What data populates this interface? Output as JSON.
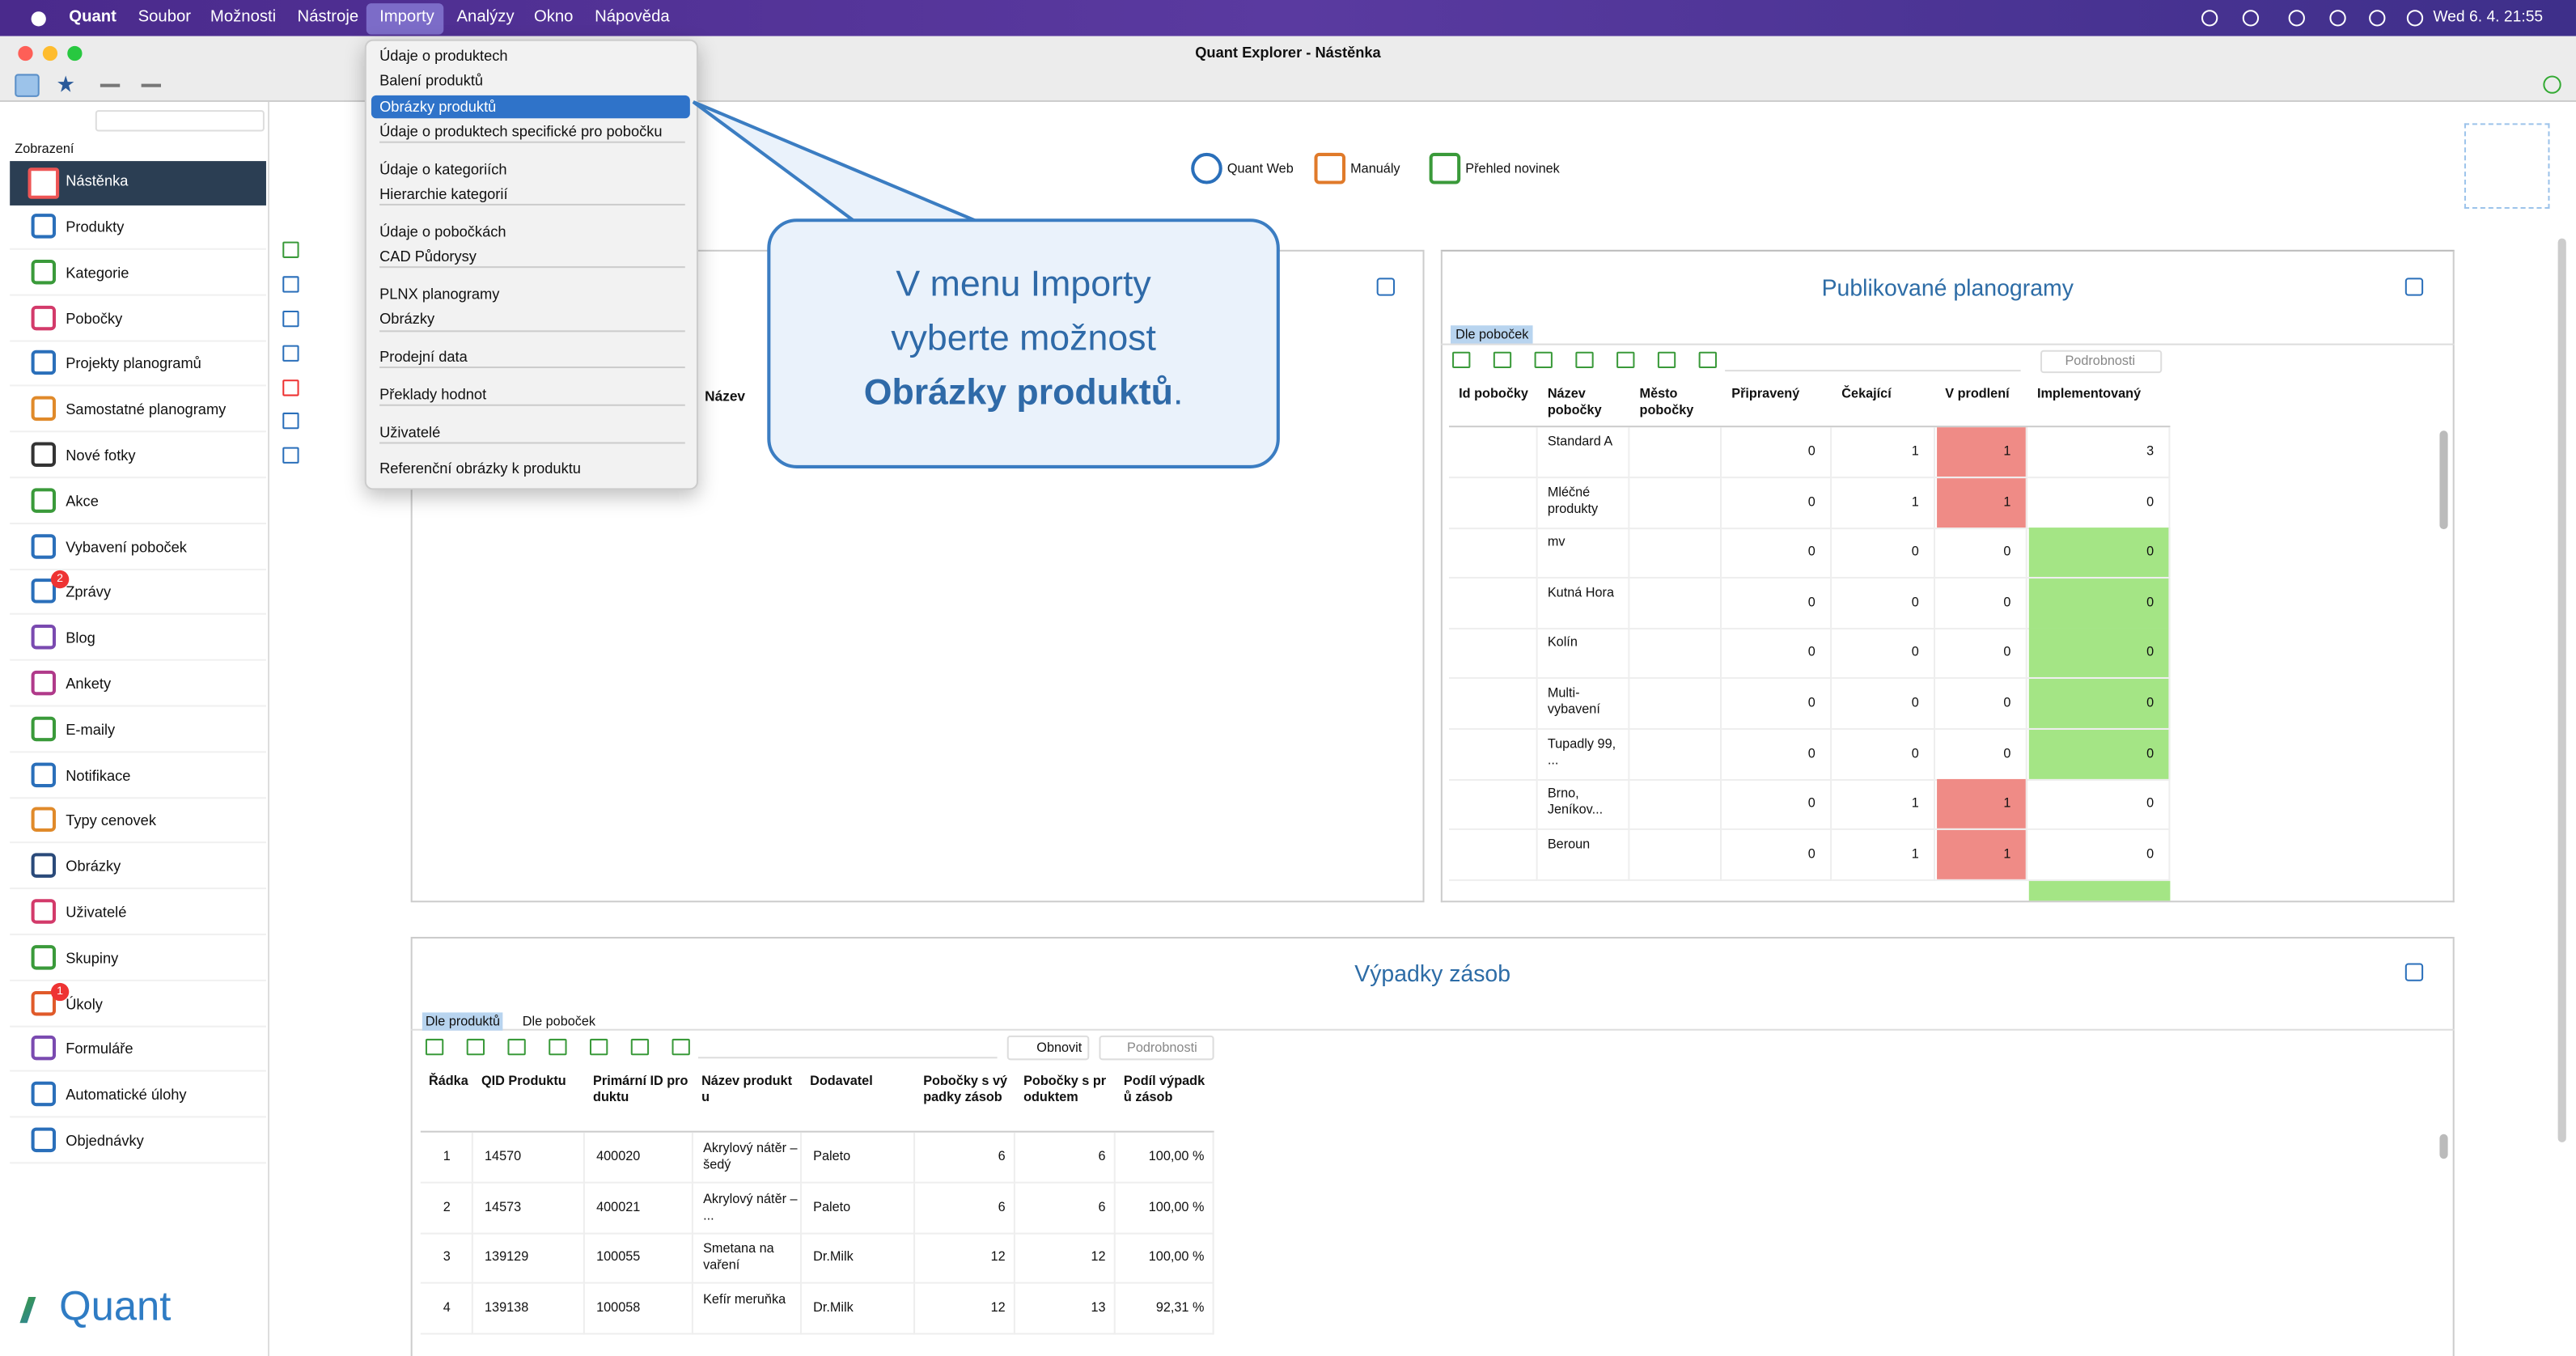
{
  "menubar": {
    "app": "Quant",
    "items": [
      "Soubor",
      "Možnosti",
      "Nástroje",
      "Importy",
      "Analýzy",
      "Okno",
      "Nápověda"
    ],
    "clock": "Wed 6. 4. 21:55"
  },
  "window_title": "Quant Explorer - Nástěnka",
  "sidebar": {
    "section": "Zobrazení",
    "selected": "Nástěnka",
    "items": [
      {
        "label": "Produkty"
      },
      {
        "label": "Kategorie"
      },
      {
        "label": "Pobočky"
      },
      {
        "label": "Projekty planogramů"
      },
      {
        "label": "Samostatné planogramy"
      },
      {
        "label": "Nové fotky"
      },
      {
        "label": "Akce"
      },
      {
        "label": "Vybavení poboček"
      },
      {
        "label": "Zprávy",
        "badge": 2
      },
      {
        "label": "Blog"
      },
      {
        "label": "Ankety"
      },
      {
        "label": "E-maily"
      },
      {
        "label": "Notifikace"
      },
      {
        "label": "Typy cenovek"
      },
      {
        "label": "Obrázky"
      },
      {
        "label": "Uživatelé"
      },
      {
        "label": "Skupiny"
      },
      {
        "label": "Úkoly",
        "badge": 1
      },
      {
        "label": "Formuláře"
      },
      {
        "label": "Automatické úlohy"
      },
      {
        "label": "Objednávky"
      }
    ]
  },
  "menu": {
    "groups": [
      [
        "Údaje o produktech",
        "Balení produktů",
        "Obrázky produktů",
        "Údaje o produktech specifické pro pobočku"
      ],
      [
        "Údaje o kategoriích",
        "Hierarchie kategorií"
      ],
      [
        "Údaje o pobočkách",
        "CAD Půdorysy"
      ],
      [
        "PLNX planogramy",
        "Obrázky"
      ],
      [
        "Prodejní data"
      ],
      [
        "Překlady hodnot"
      ],
      [
        "Uživatelé"
      ],
      [
        "Referenční obrázky k produktu"
      ]
    ]
  },
  "callout": {
    "lines": [
      "V menu Importy",
      "vyberte možnost"
    ],
    "emphasis": "Obrázky produktů",
    "end": "."
  },
  "links": [
    "Quant Web",
    "Manuály",
    "Přehled novinek"
  ],
  "left_panel": {
    "column": "Název"
  },
  "planograms": {
    "title": "Publikované planogramy",
    "tab": "Dle poboček",
    "details": "Podrobnosti",
    "columns": [
      "Id pobočky",
      "Název pobočky",
      "Město pobočky",
      "Připravený",
      "Čekající",
      "V prodlení",
      "Implementovaný"
    ],
    "rows": [
      [
        "Standard A",
        0,
        1,
        1,
        3
      ],
      [
        "Mléčné produkty",
        0,
        1,
        1,
        0
      ],
      [
        "mv",
        0,
        0,
        0,
        0
      ],
      [
        "Kutná Hora",
        0,
        0,
        0,
        0
      ],
      [
        "Kolín",
        0,
        0,
        0,
        0
      ],
      [
        "Multi-vybavení",
        0,
        0,
        0,
        0
      ],
      [
        "Tupadly 99, ...",
        0,
        0,
        0,
        0
      ],
      [
        "Brno, Jeníkov...",
        0,
        1,
        1,
        0
      ],
      [
        "Beroun",
        0,
        1,
        1,
        0
      ]
    ]
  },
  "stockouts": {
    "title": "Výpadky zásob",
    "tabs": [
      "Dle produktů",
      "Dle poboček"
    ],
    "refresh": "Obnovit",
    "details": "Podrobnosti",
    "columns": [
      "Řádka",
      "QID Produktu",
      "Primární ID produktu",
      "Název produktu",
      "Dodavatel",
      "Pobočky s výpadky zásob",
      "Pobočky s produktem",
      "Podíl výpadků zásob"
    ],
    "rows": [
      [
        1,
        14570,
        400020,
        "Akrylový nátěr – šedý",
        "Paleto",
        6,
        6,
        "100,00 %"
      ],
      [
        2,
        14573,
        400021,
        "Akrylový nátěr – ...",
        "Paleto",
        6,
        6,
        "100,00 %"
      ],
      [
        3,
        139129,
        100055,
        "Smetana na vaření",
        "Dr.Milk",
        12,
        12,
        "100,00 %"
      ],
      [
        4,
        139138,
        100058,
        "Kefír meruňka",
        "Dr.Milk",
        12,
        13,
        "92,31 %"
      ]
    ]
  },
  "logo": "Quant"
}
